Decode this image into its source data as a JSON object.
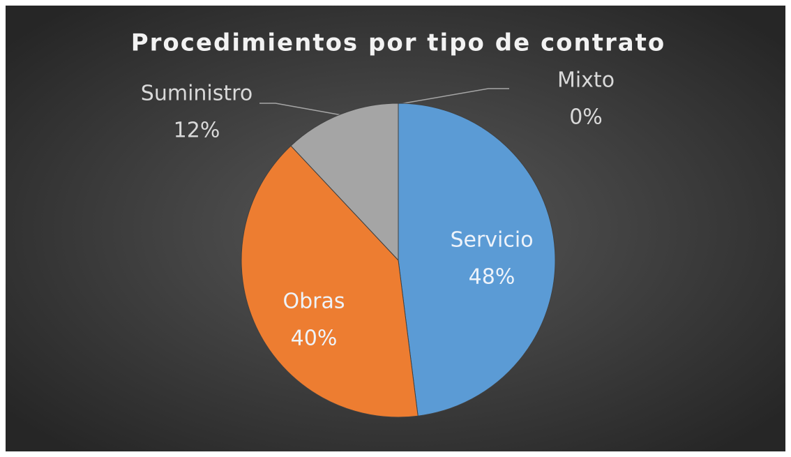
{
  "chart_data": {
    "type": "pie",
    "title": "Procedimientos por tipo de contrato",
    "categories": [
      "Servicio",
      "Obras",
      "Suministro",
      "Mixto"
    ],
    "values": [
      48,
      40,
      12,
      0
    ],
    "value_labels": [
      "48%",
      "40%",
      "12%",
      "0%"
    ],
    "colors": [
      "#5b9bd5",
      "#ed7d31",
      "#a5a5a5",
      "#ffc000"
    ]
  }
}
